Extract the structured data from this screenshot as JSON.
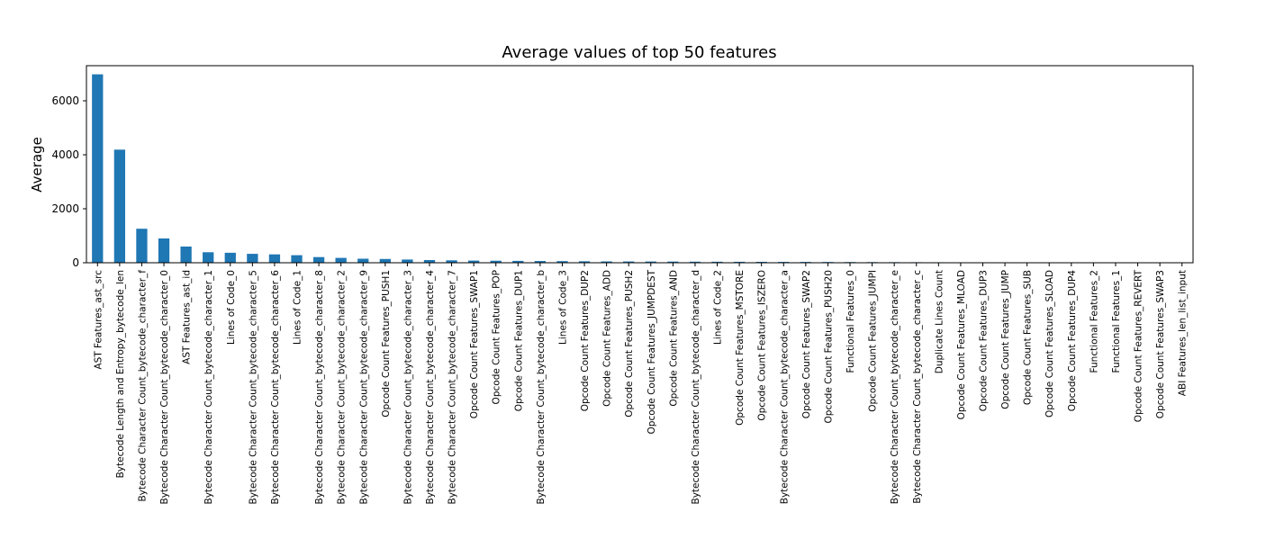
{
  "chart_data": {
    "type": "bar",
    "title": "Average values of top 50 features",
    "xlabel": "",
    "ylabel": "Average",
    "ylim": [
      0,
      7300
    ],
    "yticks": [
      0,
      2000,
      4000,
      6000
    ],
    "grid": false,
    "bar_color": "#1f77b4",
    "categories": [
      "AST Features_ast_src",
      "Bytecode Length and Entropy_bytecode_len",
      "Bytecode Character Count_bytecode_character_f",
      "Bytecode Character Count_bytecode_character_0",
      "AST Features_ast_id",
      "Bytecode Character Count_bytecode_character_1",
      "Lines of Code_0",
      "Bytecode Character Count_bytecode_character_5",
      "Bytecode Character Count_bytecode_character_6",
      "Lines of Code_1",
      "Bytecode Character Count_bytecode_character_8",
      "Bytecode Character Count_bytecode_character_2",
      "Bytecode Character Count_bytecode_character_9",
      "Opcode Count Features_PUSH1",
      "Bytecode Character Count_bytecode_character_3",
      "Bytecode Character Count_bytecode_character_4",
      "Bytecode Character Count_bytecode_character_7",
      "Opcode Count Features_SWAP1",
      "Opcode Count Features_POP",
      "Opcode Count Features_DUP1",
      "Bytecode Character Count_bytecode_character_b",
      "Lines of Code_3",
      "Opcode Count Features_DUP2",
      "Opcode Count Features_ADD",
      "Opcode Count Features_PUSH2",
      "Opcode Count Features_JUMPDEST",
      "Opcode Count Features_AND",
      "Bytecode Character Count_bytecode_character_d",
      "Lines of Code_2",
      "Opcode Count Features_MSTORE",
      "Opcode Count Features_ISZERO",
      "Bytecode Character Count_bytecode_character_a",
      "Opcode Count Features_SWAP2",
      "Opcode Count Features_PUSH20",
      "Functional Features_0",
      "Opcode Count Features_JUMPI",
      "Bytecode Character Count_bytecode_character_e",
      "Bytecode Character Count_bytecode_character_c",
      "Duplicate Lines Count",
      "Opcode Count Features_MLOAD",
      "Opcode Count Features_DUP3",
      "Opcode Count Features_JUMP",
      "Opcode Count Features_SUB",
      "Opcode Count Features_SLOAD",
      "Opcode Count Features_DUP4",
      "Functional Features_2",
      "Functional Features_1",
      "Opcode Count Features_REVERT",
      "Opcode Count Features_SWAP3",
      "ABI Features_len_list_input"
    ],
    "values": [
      6980,
      4190,
      1260,
      900,
      600,
      390,
      370,
      330,
      310,
      280,
      210,
      180,
      150,
      140,
      120,
      100,
      90,
      80,
      75,
      70,
      65,
      60,
      55,
      50,
      48,
      46,
      44,
      40,
      38,
      36,
      34,
      32,
      30,
      28,
      26,
      24,
      22,
      20,
      18,
      16,
      15,
      14,
      12,
      11,
      10,
      9,
      8,
      7,
      6,
      5
    ]
  }
}
